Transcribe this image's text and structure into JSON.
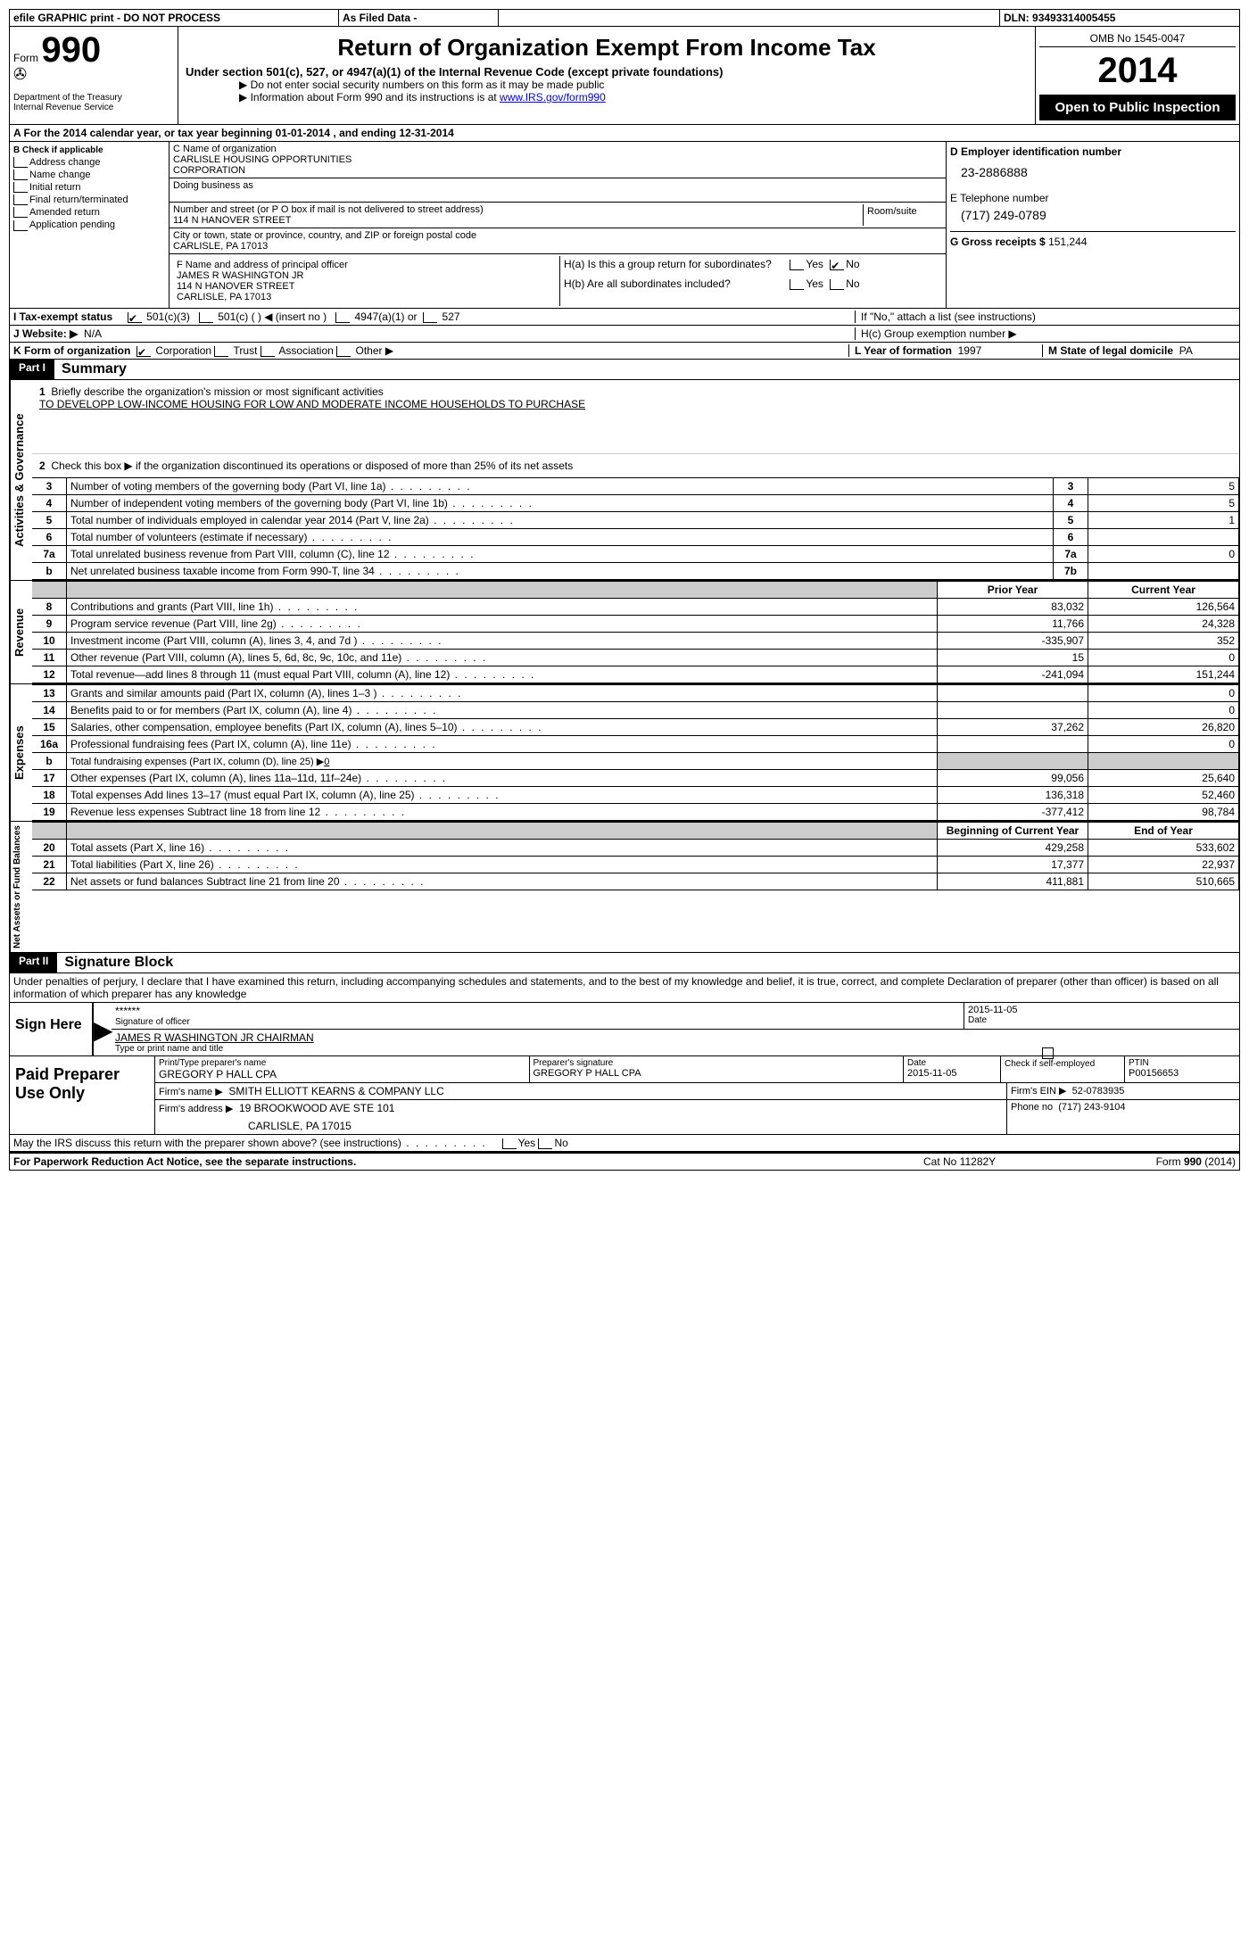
{
  "top": {
    "efile": "efile GRAPHIC print - DO NOT PROCESS",
    "asfiled": "As Filed Data -",
    "dln_label": "DLN:",
    "dln": "93493314005455"
  },
  "header": {
    "form_label": "Form",
    "form_num": "990",
    "dept1": "Department of the Treasury",
    "dept2": "Internal Revenue Service",
    "title": "Return of Organization Exempt From Income Tax",
    "sub1": "Under section 501(c), 527, or 4947(a)(1) of the Internal Revenue Code (except private foundations)",
    "sub2": "▶ Do not enter social security numbers on this form as it may be made public",
    "sub3_pre": "▶ Information about Form 990 and its instructions is at ",
    "sub3_link": "www.IRS.gov/form990",
    "omb": "OMB No 1545-0047",
    "year": "2014",
    "open": "Open to Public Inspection"
  },
  "row_a": {
    "text_pre": "A  For the 2014 calendar year, or tax year beginning ",
    "begin": "01-01-2014",
    "mid": " , and ending ",
    "end": "12-31-2014"
  },
  "b": {
    "label": "B Check if applicable",
    "items": [
      "Address change",
      "Name change",
      "Initial return",
      "Final return/terminated",
      "Amended return",
      "Application pending"
    ]
  },
  "c": {
    "name_label": "C Name of organization",
    "name1": "CARLISLE HOUSING OPPORTUNITIES",
    "name2": "CORPORATION",
    "dba_label": "Doing business as",
    "street_label": "Number and street (or P O  box if mail is not delivered to street address)",
    "room_label": "Room/suite",
    "street": "114 N HANOVER STREET",
    "city_label": "City or town, state or province, country, and ZIP or foreign postal code",
    "city": "CARLISLE, PA  17013",
    "f_label": "F   Name and address of principal officer",
    "f_name": "JAMES R WASHINGTON JR",
    "f_street": "114 N HANOVER STREET",
    "f_city": "CARLISLE, PA  17013"
  },
  "d": {
    "ein_label": "D Employer identification number",
    "ein": "23-2886888",
    "phone_label": "E Telephone number",
    "phone": "(717) 249-0789",
    "gross_label": "G Gross receipts $",
    "gross": "151,244"
  },
  "h": {
    "a": "H(a)  Is this a group return for subordinates?",
    "b": "H(b)  Are all subordinates included?",
    "b2": "If \"No,\" attach a list  (see instructions)",
    "c": "H(c)   Group exemption number ▶",
    "yes": "Yes",
    "no": "No"
  },
  "i": {
    "label": "I   Tax-exempt status",
    "c1": "501(c)(3)",
    "c2": "501(c) (   ) ◀ (insert no )",
    "c3": "4947(a)(1) or",
    "c4": "527"
  },
  "j": {
    "label": "J  Website: ▶",
    "val": "N/A"
  },
  "k": {
    "label": "K Form of organization",
    "opts": [
      "Corporation",
      "Trust",
      "Association",
      "Other ▶"
    ]
  },
  "l": {
    "label": "L Year of formation",
    "val": "1997"
  },
  "m": {
    "label": "M State of legal domicile",
    "val": "PA"
  },
  "part1": {
    "label": "Part I",
    "title": "Summary",
    "q1_label": "1",
    "q1": "Briefly describe the organization's mission or most significant activities",
    "q1_ans": "TO DEVELOPP LOW-INCOME HOUSING FOR LOW AND MODERATE INCOME HOUSEHOLDS TO PURCHASE",
    "q2_label": "2",
    "q2": "Check this box ▶       if the organization discontinued its operations or disposed of more than 25% of its net assets",
    "vert_activities": "Activities & Governance",
    "vert_revenue": "Revenue",
    "vert_expenses": "Expenses",
    "vert_net": "Net Assets or Fund Balances"
  },
  "lines_top": [
    {
      "n": "3",
      "d": "Number of voting members of the governing body (Part VI, line 1a)",
      "nb": "3",
      "v": "5"
    },
    {
      "n": "4",
      "d": "Number of independent voting members of the governing body (Part VI, line 1b)",
      "nb": "4",
      "v": "5"
    },
    {
      "n": "5",
      "d": "Total number of individuals employed in calendar year 2014 (Part V, line 2a)",
      "nb": "5",
      "v": "1"
    },
    {
      "n": "6",
      "d": "Total number of volunteers (estimate if necessary)",
      "nb": "6",
      "v": ""
    },
    {
      "n": "7a",
      "d": "Total unrelated business revenue from Part VIII, column (C), line 12",
      "nb": "7a",
      "v": "0"
    },
    {
      "n": "b",
      "d": "Net unrelated business taxable income from Form 990-T, line 34",
      "nb": "7b",
      "v": ""
    }
  ],
  "col_headers": {
    "prior": "Prior Year",
    "current": "Current Year",
    "boy": "Beginning of Current Year",
    "eoy": "End of Year"
  },
  "revenue": [
    {
      "n": "8",
      "d": "Contributions and grants (Part VIII, line 1h)",
      "p": "83,032",
      "c": "126,564"
    },
    {
      "n": "9",
      "d": "Program service revenue (Part VIII, line 2g)",
      "p": "11,766",
      "c": "24,328"
    },
    {
      "n": "10",
      "d": "Investment income (Part VIII, column (A), lines 3, 4, and 7d )",
      "p": "-335,907",
      "c": "352"
    },
    {
      "n": "11",
      "d": "Other revenue (Part VIII, column (A), lines 5, 6d, 8c, 9c, 10c, and 11e)",
      "p": "15",
      "c": "0"
    },
    {
      "n": "12",
      "d": "Total revenue—add lines 8 through 11 (must equal Part VIII, column (A), line 12)",
      "p": "-241,094",
      "c": "151,244"
    }
  ],
  "expenses": [
    {
      "n": "13",
      "d": "Grants and similar amounts paid (Part IX, column (A), lines 1–3 )",
      "p": "",
      "c": "0"
    },
    {
      "n": "14",
      "d": "Benefits paid to or for members (Part IX, column (A), line 4)",
      "p": "",
      "c": "0"
    },
    {
      "n": "15",
      "d": "Salaries, other compensation, employee benefits (Part IX, column (A), lines 5–10)",
      "p": "37,262",
      "c": "26,820"
    },
    {
      "n": "16a",
      "d": "Professional fundraising fees (Part IX, column (A), line 11e)",
      "p": "",
      "c": "0"
    },
    {
      "n": "b",
      "d": "Total fundraising expenses (Part IX, column (D), line 25) ▶",
      "p": "gray",
      "c": "gray",
      "sub": "0"
    },
    {
      "n": "17",
      "d": "Other expenses (Part IX, column (A), lines 11a–11d, 11f–24e)",
      "p": "99,056",
      "c": "25,640"
    },
    {
      "n": "18",
      "d": "Total expenses  Add lines 13–17 (must equal Part IX, column (A), line 25)",
      "p": "136,318",
      "c": "52,460"
    },
    {
      "n": "19",
      "d": "Revenue less expenses  Subtract line 18 from line 12",
      "p": "-377,412",
      "c": "98,784"
    }
  ],
  "net": [
    {
      "n": "20",
      "d": "Total assets (Part X, line 16)",
      "p": "429,258",
      "c": "533,602"
    },
    {
      "n": "21",
      "d": "Total liabilities (Part X, line 26)",
      "p": "17,377",
      "c": "22,937"
    },
    {
      "n": "22",
      "d": "Net assets or fund balances  Subtract line 21 from line 20",
      "p": "411,881",
      "c": "510,665"
    }
  ],
  "part2": {
    "label": "Part II",
    "title": "Signature Block",
    "perjury": "Under penalties of perjury, I declare that I have examined this return, including accompanying schedules and statements, and to the best of my knowledge and belief, it is true, correct, and complete  Declaration of preparer (other than officer) is based on all information of which preparer has any knowledge",
    "sign_here": "Sign Here",
    "stars": "******",
    "sig_label": "Signature of officer",
    "date_label": "Date",
    "sig_date": "2015-11-05",
    "sig_name": "JAMES R WASHINGTON JR CHAIRMAN",
    "typed_label": "Type or print name and title"
  },
  "preparer": {
    "label": "Paid Preparer Use Only",
    "name_label": "Print/Type preparer's name",
    "name": "GREGORY P HALL CPA",
    "sig_label": "Preparer's signature",
    "sig": "GREGORY P HALL CPA",
    "date_label": "Date",
    "date": "2015-11-05",
    "check_label": "Check        if self-employed",
    "ptin_label": "PTIN",
    "ptin": "P00156653",
    "firm_name_label": "Firm's name     ▶",
    "firm_name": "SMITH ELLIOTT KEARNS & COMPANY LLC",
    "firm_ein_label": "Firm's EIN ▶",
    "firm_ein": "52-0783935",
    "firm_addr_label": "Firm's address ▶",
    "firm_addr1": "19 BROOKWOOD AVE STE 101",
    "firm_addr2": "CARLISLE, PA  17015",
    "firm_phone_label": "Phone no",
    "firm_phone": "(717) 243-9104"
  },
  "footer": {
    "irs_q": "May the IRS discuss this return with the preparer shown above? (see instructions)",
    "yes": "Yes",
    "no": "No",
    "paperwork": "For Paperwork Reduction Act Notice, see the separate instructions.",
    "catno": "Cat No  11282Y",
    "formline": "Form 990 (2014)"
  }
}
